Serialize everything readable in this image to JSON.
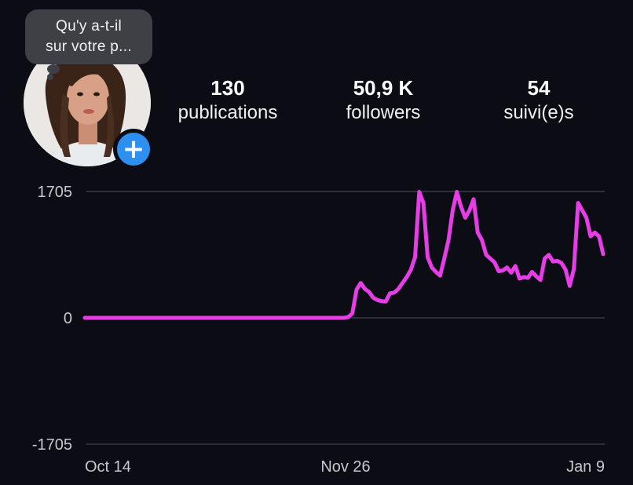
{
  "profile": {
    "note_lines": [
      "Qu'y a-t-il",
      "sur votre p..."
    ],
    "add_icon": "plus-icon",
    "accent_color": "#2d8ff0"
  },
  "stats": {
    "posts": {
      "value": "130",
      "label": "publications"
    },
    "followers": {
      "value": "50,9 K",
      "label": "followers"
    },
    "following": {
      "value": "54",
      "label": "suivi(e)s"
    }
  },
  "chart_data": {
    "type": "line",
    "ylim": [
      -1705,
      1705
    ],
    "yticks": [
      "1705",
      "0",
      "-1705"
    ],
    "xticks": [
      "Oct 14",
      "Nov 26",
      "Jan 9"
    ],
    "line_color": "#e63de6",
    "grid": true,
    "series": [
      {
        "values": [
          0,
          0,
          0,
          0,
          0,
          0,
          0,
          0,
          0,
          0,
          0,
          0,
          0,
          0,
          0,
          0,
          0,
          0,
          0,
          0,
          0,
          0,
          0,
          0,
          0,
          0,
          0,
          0,
          0,
          0,
          0,
          0,
          0,
          0,
          0,
          0,
          0,
          0,
          0,
          0,
          0,
          0,
          0,
          0,
          0,
          0,
          0,
          0,
          0,
          0,
          0,
          0,
          0,
          0,
          0,
          0,
          0,
          0,
          0,
          0,
          0,
          0,
          0,
          10,
          60,
          380,
          470,
          390,
          350,
          270,
          240,
          225,
          220,
          330,
          340,
          390,
          470,
          550,
          650,
          820,
          1700,
          1550,
          820,
          680,
          620,
          570,
          800,
          1050,
          1450,
          1700,
          1500,
          1350,
          1450,
          1600,
          1150,
          1050,
          850,
          800,
          750,
          630,
          640,
          680,
          610,
          700,
          530,
          550,
          540,
          620,
          560,
          510,
          800,
          850,
          760,
          770,
          740,
          650,
          430,
          660,
          1550,
          1450,
          1350,
          1100,
          1150,
          1100,
          860
        ]
      }
    ]
  }
}
